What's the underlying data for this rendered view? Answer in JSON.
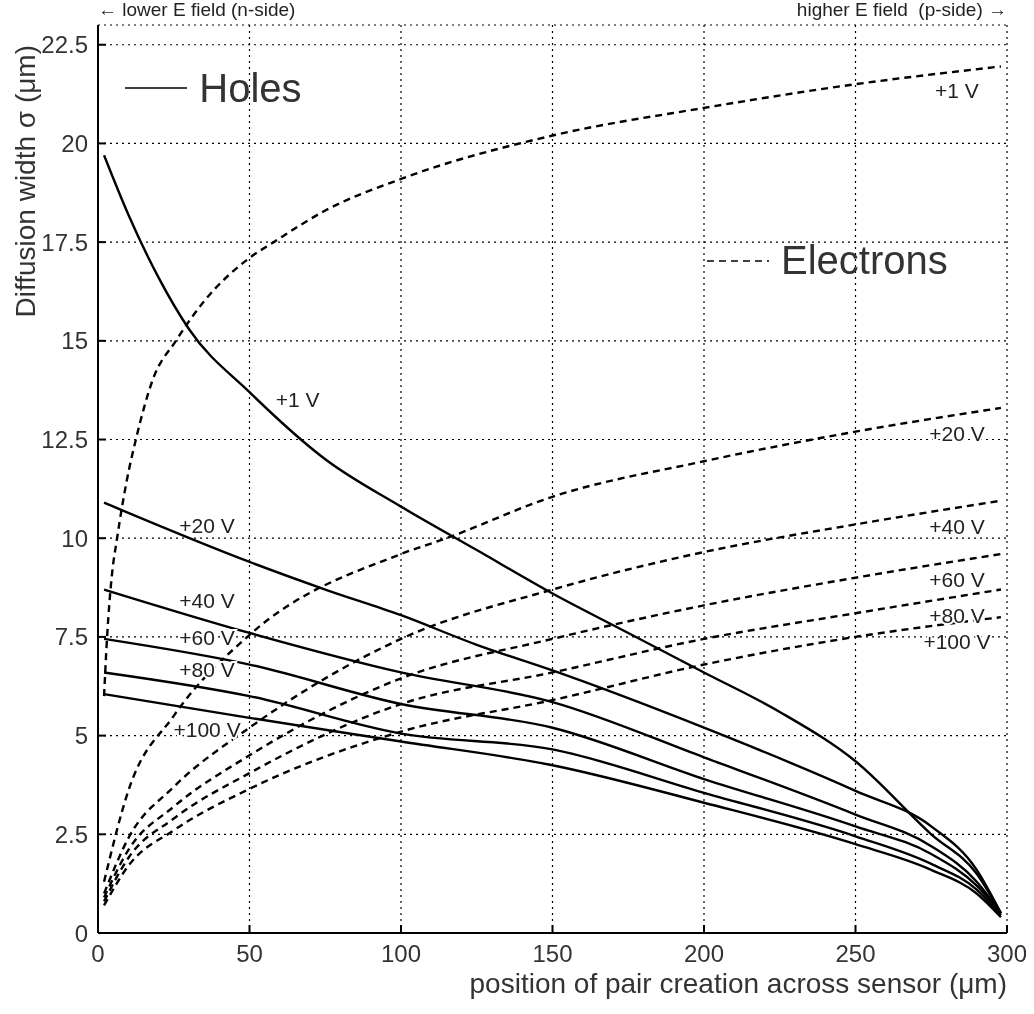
{
  "chart_data": {
    "type": "line",
    "xlabel": "position of pair creation across sensor (μm)",
    "ylabel": "Diffusion width σ (μm)",
    "xlim": [
      0,
      300
    ],
    "ylim": [
      0,
      23
    ],
    "xticks": [
      0,
      50,
      100,
      150,
      200,
      250,
      300
    ],
    "yticks": [
      0,
      2.5,
      5,
      7.5,
      10,
      12.5,
      15,
      17.5,
      20,
      22.5
    ],
    "grid": true,
    "marker": "none",
    "series": [
      {
        "name": "+1 V",
        "line_style": "solid",
        "color": "#000000",
        "x": [
          2,
          10,
          20,
          30,
          50,
          75,
          100,
          125,
          150,
          175,
          200,
          225,
          250,
          275,
          290,
          298
        ],
        "values": [
          19.7,
          18.2,
          16.6,
          15.3,
          13.7,
          12.0,
          10.8,
          9.7,
          8.6,
          7.6,
          6.6,
          5.6,
          4.35,
          2.5,
          1.5,
          0.5
        ]
      },
      {
        "name": "+20 V",
        "line_style": "solid",
        "color": "#000000",
        "x": [
          2,
          50,
          75,
          100,
          125,
          150,
          200,
          250,
          275,
          290,
          298
        ],
        "values": [
          10.9,
          9.4,
          8.7,
          8.05,
          7.3,
          6.65,
          5.2,
          3.6,
          2.7,
          1.6,
          0.5
        ]
      },
      {
        "name": "+40 V",
        "line_style": "solid",
        "color": "#000000",
        "x": [
          2,
          50,
          100,
          150,
          200,
          250,
          275,
          290,
          298
        ],
        "values": [
          8.7,
          7.6,
          6.6,
          5.85,
          4.45,
          3.0,
          2.2,
          1.3,
          0.5
        ]
      },
      {
        "name": "+60 V",
        "line_style": "solid",
        "color": "#000000",
        "x": [
          2,
          50,
          100,
          150,
          200,
          250,
          275,
          290,
          298
        ],
        "values": [
          7.45,
          6.8,
          5.8,
          5.2,
          3.9,
          2.7,
          2.0,
          1.2,
          0.5
        ]
      },
      {
        "name": "+80 V",
        "line_style": "solid",
        "color": "#000000",
        "x": [
          2,
          50,
          100,
          150,
          200,
          250,
          275,
          290,
          298
        ],
        "values": [
          6.6,
          6.0,
          5.05,
          4.65,
          3.55,
          2.45,
          1.75,
          1.1,
          0.45
        ]
      },
      {
        "name": "+100 V",
        "line_style": "solid",
        "color": "#000000",
        "x": [
          2,
          50,
          100,
          150,
          200,
          250,
          275,
          290,
          298
        ],
        "values": [
          6.05,
          5.45,
          4.85,
          4.25,
          3.3,
          2.25,
          1.6,
          1.0,
          0.4
        ]
      },
      {
        "name": "+1 V",
        "line_style": "dashed",
        "color": "#000000",
        "x": [
          2,
          3,
          4.5,
          6.3,
          9.6,
          12.5,
          18,
          25.7,
          35,
          50,
          58,
          75,
          100,
          150,
          200,
          250,
          298
        ],
        "values": [
          6.0,
          7.5,
          9.0,
          10.0,
          11.5,
          12.5,
          14.0,
          15.0,
          16.0,
          17.1,
          17.5,
          18.3,
          19.1,
          20.2,
          20.9,
          21.5,
          21.95
        ]
      },
      {
        "name": "+20 V",
        "line_style": "dashed",
        "color": "#000000",
        "x": [
          2,
          10,
          25,
          50,
          100,
          115,
          150,
          200,
          250,
          298
        ],
        "values": [
          1.3,
          3.6,
          5.5,
          7.55,
          9.6,
          10.0,
          11.05,
          11.95,
          12.7,
          13.3
        ]
      },
      {
        "name": "+40 V",
        "line_style": "dashed",
        "color": "#000000",
        "x": [
          2,
          10,
          25,
          50,
          100,
          150,
          200,
          250,
          298
        ],
        "values": [
          1.0,
          2.4,
          3.7,
          5.2,
          7.45,
          8.7,
          9.65,
          10.35,
          10.95
        ]
      },
      {
        "name": "+60 V",
        "line_style": "dashed",
        "color": "#000000",
        "x": [
          2,
          10,
          25,
          50,
          100,
          150,
          200,
          250,
          298
        ],
        "values": [
          0.9,
          2.1,
          3.2,
          4.5,
          6.45,
          7.45,
          8.3,
          9.0,
          9.6
        ]
      },
      {
        "name": "+80 V",
        "line_style": "dashed",
        "color": "#000000",
        "x": [
          2,
          10,
          25,
          50,
          100,
          150,
          200,
          250,
          298
        ],
        "values": [
          0.8,
          1.9,
          2.9,
          4.05,
          5.8,
          6.6,
          7.45,
          8.1,
          8.7
        ]
      },
      {
        "name": "+100 V",
        "line_style": "dashed",
        "color": "#000000",
        "x": [
          2,
          10,
          25,
          50,
          100,
          150,
          200,
          250,
          298
        ],
        "values": [
          0.7,
          1.7,
          2.6,
          3.65,
          5.1,
          5.9,
          6.8,
          7.5,
          8.0
        ]
      }
    ],
    "annotations": [
      "← lower E field (n-side)",
      "higher E field  (p-side) →",
      "Holes",
      "Electrons"
    ]
  }
}
